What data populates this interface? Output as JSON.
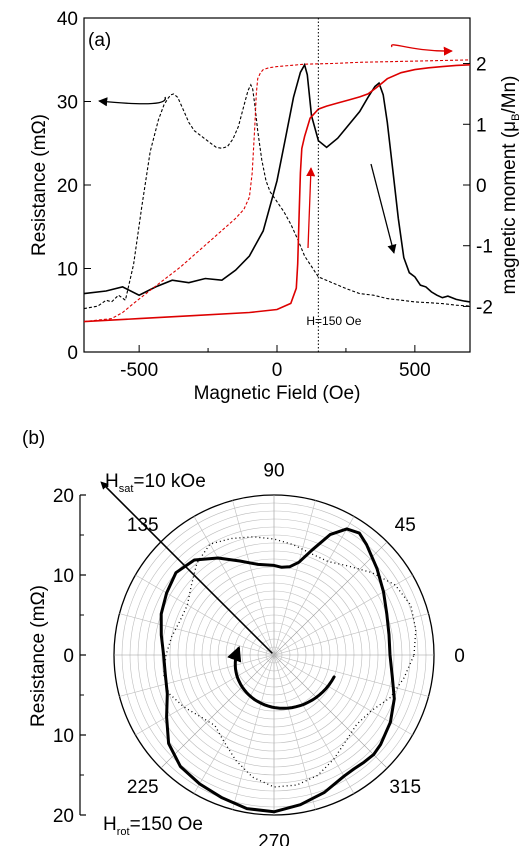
{
  "chart_data": [
    {
      "panel": "(a)",
      "type": "line",
      "xlabel": "Magnetic Field (Oe)",
      "ylabel": "Resistance (mΩ)",
      "y2label": {
        "main": "magnetic moment (μ",
        "sub": "B",
        "tail": "/Mn)"
      },
      "xlim": [
        -700,
        700
      ],
      "ylim": [
        0,
        40
      ],
      "y2lim": [
        -2.75,
        2.75
      ],
      "xticks": [
        "-500",
        "0",
        "500"
      ],
      "xtick_values": [
        -500,
        0,
        500
      ],
      "yticks": [
        "0",
        "10",
        "20",
        "30",
        "40"
      ],
      "ytick_values": [
        0,
        10,
        20,
        30,
        40
      ],
      "y2ticks": [
        "-2",
        "-1",
        "0",
        "1",
        "2"
      ],
      "y2tick_values": [
        -2,
        -1,
        0,
        1,
        2
      ],
      "marker_line": {
        "x": 150,
        "label": "H=150 Oe"
      },
      "series": [
        {
          "axis": "left",
          "color": "#000000",
          "style": "solid",
          "x": [
            -700,
            -620,
            -560,
            -500,
            -440,
            -380,
            -320,
            -260,
            -200,
            -150,
            -100,
            -50,
            0,
            30,
            60,
            85,
            100,
            110,
            125,
            150,
            180,
            220,
            260,
            300,
            330,
            355,
            370,
            385,
            400,
            420,
            440,
            460,
            480,
            500,
            520,
            540,
            560,
            580,
            600,
            620,
            650,
            680,
            700
          ],
          "y": [
            7,
            7.3,
            7.8,
            6.8,
            7.8,
            8.6,
            8.3,
            8.8,
            8.6,
            9.8,
            11.5,
            14.5,
            20.5,
            25.5,
            30.5,
            33.5,
            34.4,
            33.2,
            28.3,
            25.3,
            24.5,
            25.6,
            27.2,
            28.8,
            30.5,
            31.8,
            32.2,
            30.8,
            27.5,
            21.8,
            16.0,
            11.3,
            9.5,
            9.0,
            8.0,
            7.8,
            7.2,
            6.8,
            6.5,
            6.7,
            6.3,
            6.1,
            6.0
          ]
        },
        {
          "axis": "left",
          "color": "#000000",
          "style": "dashed",
          "x": [
            -700,
            -650,
            -620,
            -600,
            -575,
            -550,
            -520,
            -490,
            -460,
            -430,
            -410,
            -395,
            -385,
            -375,
            -360,
            -340,
            -320,
            -300,
            -280,
            -260,
            -240,
            -220,
            -200,
            -180,
            -160,
            -140,
            -120,
            -105,
            -95,
            -88,
            -80,
            -70,
            -55,
            -40,
            -25,
            0,
            25,
            50,
            75,
            100,
            150,
            200,
            250,
            300,
            350,
            400,
            450,
            500,
            550,
            600,
            650,
            700
          ],
          "y": [
            5.2,
            5.5,
            6.2,
            6.0,
            6.8,
            6.2,
            10.5,
            17.5,
            24.0,
            27.8,
            29.6,
            30.4,
            30.8,
            30.9,
            30.5,
            29.0,
            27.5,
            26.5,
            26.0,
            25.5,
            25.0,
            24.5,
            24.4,
            24.6,
            25.5,
            27.0,
            29.5,
            31.3,
            32.0,
            31.5,
            29.5,
            26.5,
            23.0,
            20.5,
            19.2,
            18.0,
            16.8,
            15.3,
            13.5,
            11.5,
            9.0,
            8.3,
            7.6,
            7.0,
            6.8,
            6.4,
            6.2,
            6.0,
            5.9,
            5.8,
            5.6,
            5.5
          ]
        },
        {
          "axis": "right",
          "color": "#dd0000",
          "style": "solid",
          "x": [
            -700,
            -500,
            -300,
            -100,
            0,
            50,
            70,
            75,
            80,
            85,
            90,
            100,
            120,
            150,
            180,
            220,
            260,
            300,
            330,
            360,
            400,
            450,
            500,
            550,
            600,
            650,
            700
          ],
          "y": [
            -2.25,
            -2.2,
            -2.15,
            -2.1,
            -2.05,
            -1.95,
            -1.7,
            -1.3,
            -0.5,
            0.2,
            0.6,
            0.8,
            1.1,
            1.25,
            1.3,
            1.35,
            1.4,
            1.45,
            1.5,
            1.6,
            1.75,
            1.85,
            1.9,
            1.93,
            1.95,
            1.97,
            1.98
          ]
        },
        {
          "axis": "right",
          "color": "#dd0000",
          "style": "dashed",
          "x": [
            -700,
            -600,
            -560,
            -520,
            -450,
            -350,
            -300,
            -250,
            -200,
            -150,
            -120,
            -100,
            -90,
            -80,
            -75,
            -70,
            -60,
            -50,
            -30,
            0,
            50,
            100,
            200,
            300,
            400,
            500,
            600,
            700
          ],
          "y": [
            -2.25,
            -2.2,
            -2.1,
            -1.95,
            -1.7,
            -1.35,
            -1.15,
            -0.95,
            -0.75,
            -0.55,
            -0.4,
            -0.2,
            0.2,
            1.0,
            1.5,
            1.75,
            1.85,
            1.9,
            1.93,
            1.95,
            1.97,
            1.99,
            2.0,
            2.02,
            2.03,
            2.04,
            2.05,
            2.06
          ]
        }
      ]
    },
    {
      "panel": "(b)",
      "type": "polar",
      "ylabel": "Resistance (mΩ)",
      "angle_labels": [
        "0",
        "45",
        "90",
        "135",
        "225",
        "270",
        "315"
      ],
      "angle_values": [
        0,
        45,
        90,
        135,
        225,
        270,
        315
      ],
      "radial_range": [
        0,
        20
      ],
      "side_ticks": [
        "20",
        "10",
        "0",
        "10",
        "20"
      ],
      "side_tick_values": [
        20,
        10,
        0,
        -10,
        -20
      ],
      "h_sat": {
        "main": "H",
        "sub": "sat",
        "tail": "=10 kOe",
        "angle_deg": 135
      },
      "h_rot": {
        "main": "H",
        "sub": "rot",
        "tail": "=150 Oe"
      },
      "series": [
        {
          "name": "solid",
          "style": "solid",
          "theta": [
            0,
            10,
            20,
            30,
            40,
            50,
            55,
            60,
            65,
            70,
            75,
            80,
            85,
            90,
            100,
            110,
            120,
            130,
            140,
            150,
            160,
            170,
            180,
            190,
            200,
            210,
            220,
            230,
            240,
            250,
            260,
            270,
            280,
            290,
            300,
            305,
            310,
            315,
            320,
            330,
            340,
            350,
            360
          ],
          "r": [
            14.5,
            14.6,
            15.0,
            15.8,
            16.8,
            18.0,
            18.6,
            18.2,
            16.6,
            14.0,
            12.0,
            11.2,
            11.0,
            11.2,
            11.5,
            12.5,
            14.0,
            15.5,
            16.0,
            15.5,
            15.0,
            14.3,
            13.8,
            13.8,
            14.2,
            15.5,
            17.2,
            18.2,
            18.6,
            19.0,
            19.5,
            19.6,
            19.0,
            18.3,
            17.5,
            17.4,
            17.5,
            17.6,
            17.4,
            16.8,
            16.0,
            15.0,
            14.5
          ]
        },
        {
          "name": "dotted",
          "style": "dotted",
          "theta": [
            0,
            10,
            20,
            30,
            40,
            50,
            60,
            70,
            80,
            90,
            100,
            110,
            120,
            130,
            140,
            150,
            160,
            170,
            180,
            190,
            200,
            210,
            220,
            230,
            240,
            250,
            260,
            270,
            280,
            290,
            300,
            310,
            320,
            330,
            340,
            350,
            360
          ],
          "r": [
            17.5,
            18.0,
            18.2,
            17.5,
            16.0,
            14.5,
            13.5,
            13.5,
            14.0,
            14.5,
            15.0,
            15.5,
            16.0,
            15.0,
            13.5,
            12.5,
            12.5,
            13.0,
            13.5,
            14.0,
            14.0,
            13.0,
            12.0,
            11.5,
            12.5,
            14.0,
            15.5,
            16.5,
            16.5,
            16.0,
            15.0,
            14.0,
            13.5,
            14.0,
            15.5,
            16.5,
            17.5
          ]
        }
      ],
      "rotation_arrow": {
        "start_deg": 170,
        "end_deg": 340,
        "r_start": 4.5,
        "r_end": 8.0,
        "direction": "counterclockwise"
      }
    }
  ]
}
